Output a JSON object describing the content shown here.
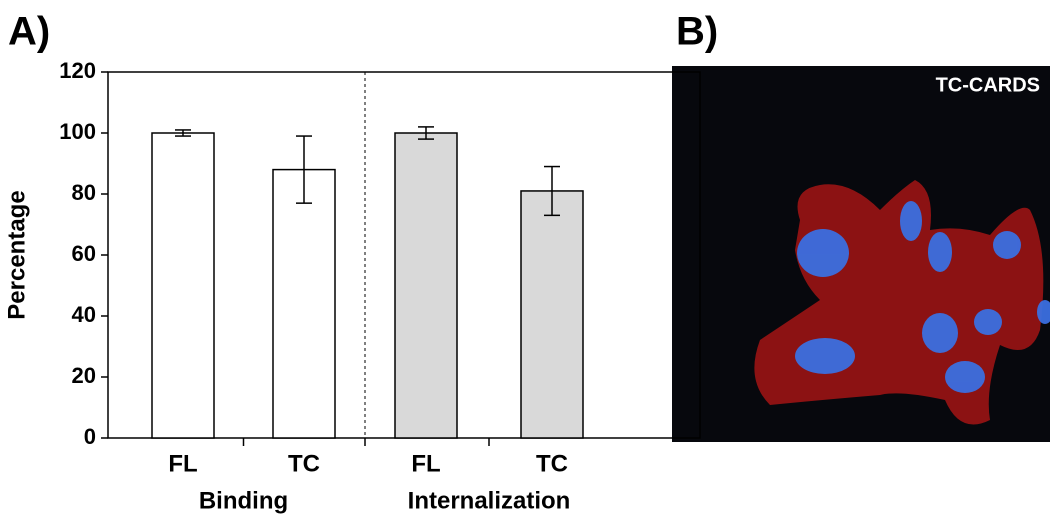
{
  "panel_labels": [
    "A)",
    "B)"
  ],
  "chart_data": {
    "type": "bar",
    "ylabel": "Percentage",
    "categories": [
      "FL",
      "TC",
      "FL",
      "TC"
    ],
    "values": [
      100,
      88,
      100,
      81
    ],
    "errors": [
      1,
      11,
      2,
      8
    ],
    "colors": [
      "#ffffff",
      "#ffffff",
      "#d9d9d9",
      "#d9d9d9"
    ],
    "groups": [
      "Binding",
      "Internalization"
    ],
    "ylim": [
      0,
      120
    ],
    "yticks": [
      0,
      20,
      40,
      60,
      80,
      100,
      120
    ]
  },
  "image": {
    "label": "TC-CARDS"
  }
}
